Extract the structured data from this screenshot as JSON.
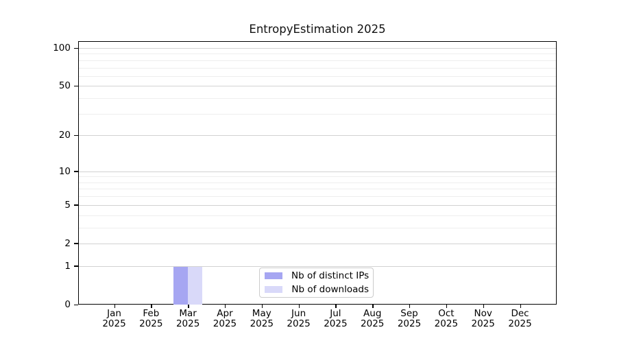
{
  "chart_data": {
    "type": "bar",
    "title": "EntropyEstimation 2025",
    "categories": [
      "Jan 2025",
      "Feb 2025",
      "Mar 2025",
      "Apr 2025",
      "May 2025",
      "Jun 2025",
      "Jul 2025",
      "Aug 2025",
      "Sep 2025",
      "Oct 2025",
      "Nov 2025",
      "Dec 2025"
    ],
    "series": [
      {
        "name": "Nb of distinct IPs",
        "color": "#a6a6f2",
        "values": [
          0,
          0,
          1,
          0,
          0,
          0,
          0,
          0,
          0,
          0,
          0,
          0
        ]
      },
      {
        "name": "Nb of downloads",
        "color": "#d9d9f9",
        "values": [
          0,
          0,
          1,
          0,
          0,
          0,
          0,
          0,
          0,
          0,
          0,
          0
        ]
      }
    ],
    "xlabel": "",
    "ylabel": "",
    "y_ticks": [
      0,
      1,
      2,
      5,
      10,
      20,
      50,
      100
    ],
    "y_minor_ticks": [
      3,
      4,
      6,
      7,
      8,
      9,
      30,
      40,
      60,
      70,
      80,
      90
    ],
    "y_scale": "log10(1+v)",
    "y_max": 113.3,
    "ylim": [
      0,
      113.3
    ],
    "grid": "horizontal major and minor gridlines",
    "legend_position": "inside bottom-center",
    "colors": {
      "axis": "#000000",
      "major_grid": "#d2d2d2",
      "minor_grid": "#eeeeee",
      "legend_border": "#cbcbcb",
      "background": "#ffffff"
    }
  }
}
